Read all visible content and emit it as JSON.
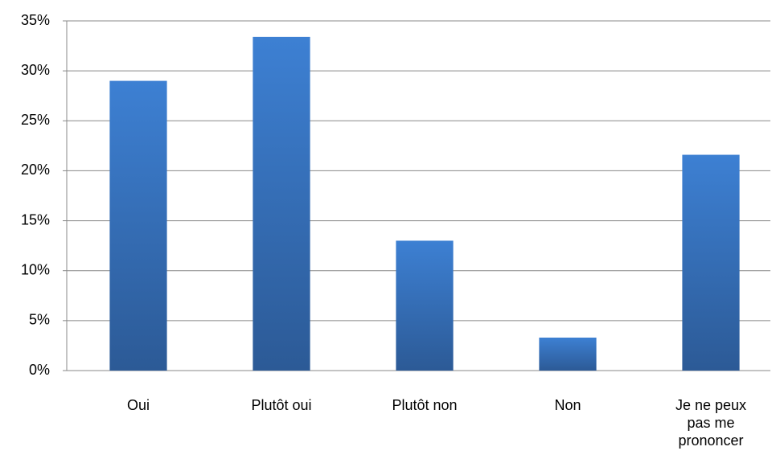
{
  "chart_data": {
    "type": "bar",
    "categories": [
      "Oui",
      "Plutôt oui",
      "Plutôt non",
      "Non",
      "Je ne peux pas me prononcer"
    ],
    "values": [
      29.0,
      33.4,
      13.0,
      3.3,
      21.6
    ],
    "color": "#3d80d3",
    "ylim": [
      0,
      35
    ],
    "yticks": [
      {
        "value": 0,
        "label": "0%"
      },
      {
        "value": 5,
        "label": "5%"
      },
      {
        "value": 10,
        "label": "10%"
      },
      {
        "value": 15,
        "label": "15%"
      },
      {
        "value": 20,
        "label": "20%"
      },
      {
        "value": 25,
        "label": "25%"
      },
      {
        "value": 30,
        "label": "30%"
      },
      {
        "value": 35,
        "label": "35%"
      }
    ],
    "grid": true
  }
}
